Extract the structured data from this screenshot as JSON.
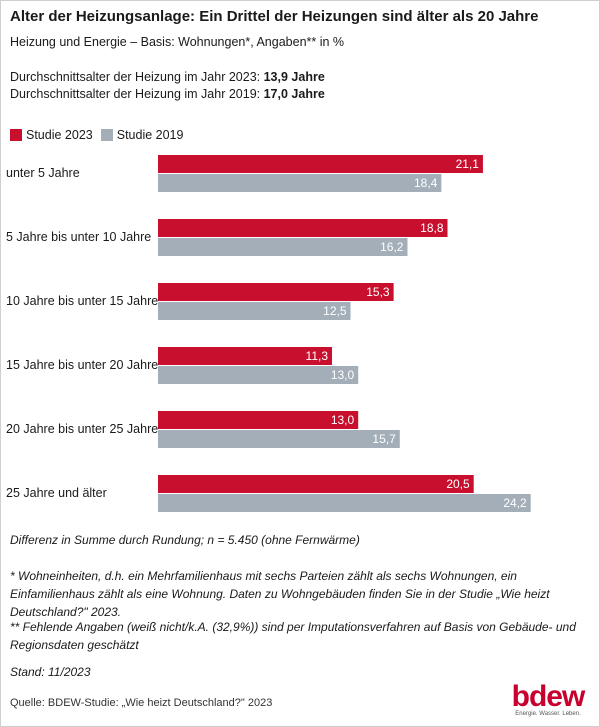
{
  "title": "Alter der Heizungsanlage: Ein Drittel der Heizungen sind älter als 20 Jahre",
  "subtitle": "Heizung und Energie – Basis: Wohnungen*, Angaben** in %",
  "avg2023_label": "Durchschnittsalter der Heizung im Jahr 2023:",
  "avg2023_value": "13,9 Jahre",
  "avg2019_label": "Durchschnittsalter der Heizung im Jahr 2019:",
  "avg2019_value": "17,0 Jahre",
  "chart_data": {
    "type": "bar",
    "orientation": "horizontal",
    "categories": [
      "unter 5 Jahre",
      "5 Jahre bis unter 10 Jahre",
      "10 Jahre bis unter 15 Jahre",
      "15 Jahre bis unter 20 Jahre",
      "20 Jahre bis unter 25 Jahre",
      "25 Jahre und älter"
    ],
    "series": [
      {
        "name": "Studie 2023",
        "color": "#c8102e",
        "values": [
          21.1,
          18.8,
          15.3,
          11.3,
          13.0,
          20.5
        ],
        "labels": [
          "21,1",
          "18,8",
          "15,3",
          "11,3",
          "13,0",
          "20,5"
        ]
      },
      {
        "name": "Studie 2019",
        "color": "#a3aeb9",
        "values": [
          18.4,
          16.2,
          12.5,
          13.0,
          15.7,
          24.2
        ],
        "labels": [
          "18,4",
          "16,2",
          "12,5",
          "13,0",
          "15,7",
          "24,2"
        ]
      }
    ],
    "legend_position": "top-left",
    "grid": false
  },
  "notes": {
    "rounding": "Differenz in Summe durch Rundung; n = 5.450 (ohne Fernwärme)",
    "footnote1": "* Wohneinheiten, d.h. ein Mehrfamilienhaus mit sechs Parteien zählt als sechs Wohnungen, ein Einfamilienhaus zählt als eine Wohnung. Daten zu Wohngebäuden finden Sie in der Studie „Wie heizt Deutschland?\" 2023.",
    "footnote2": "** Fehlende Angaben (weiß nicht/k.A. (32,9%)) sind per Imputationsverfahren auf Basis von Gebäude- und Regionsdaten geschätzt",
    "stand": "Stand: 11/2023"
  },
  "source": "Quelle: BDEW-Studie: „Wie heizt Deutschland?\" 2023",
  "logo": {
    "brand": "bdew",
    "tagline": "Energie. Wasser. Leben."
  }
}
